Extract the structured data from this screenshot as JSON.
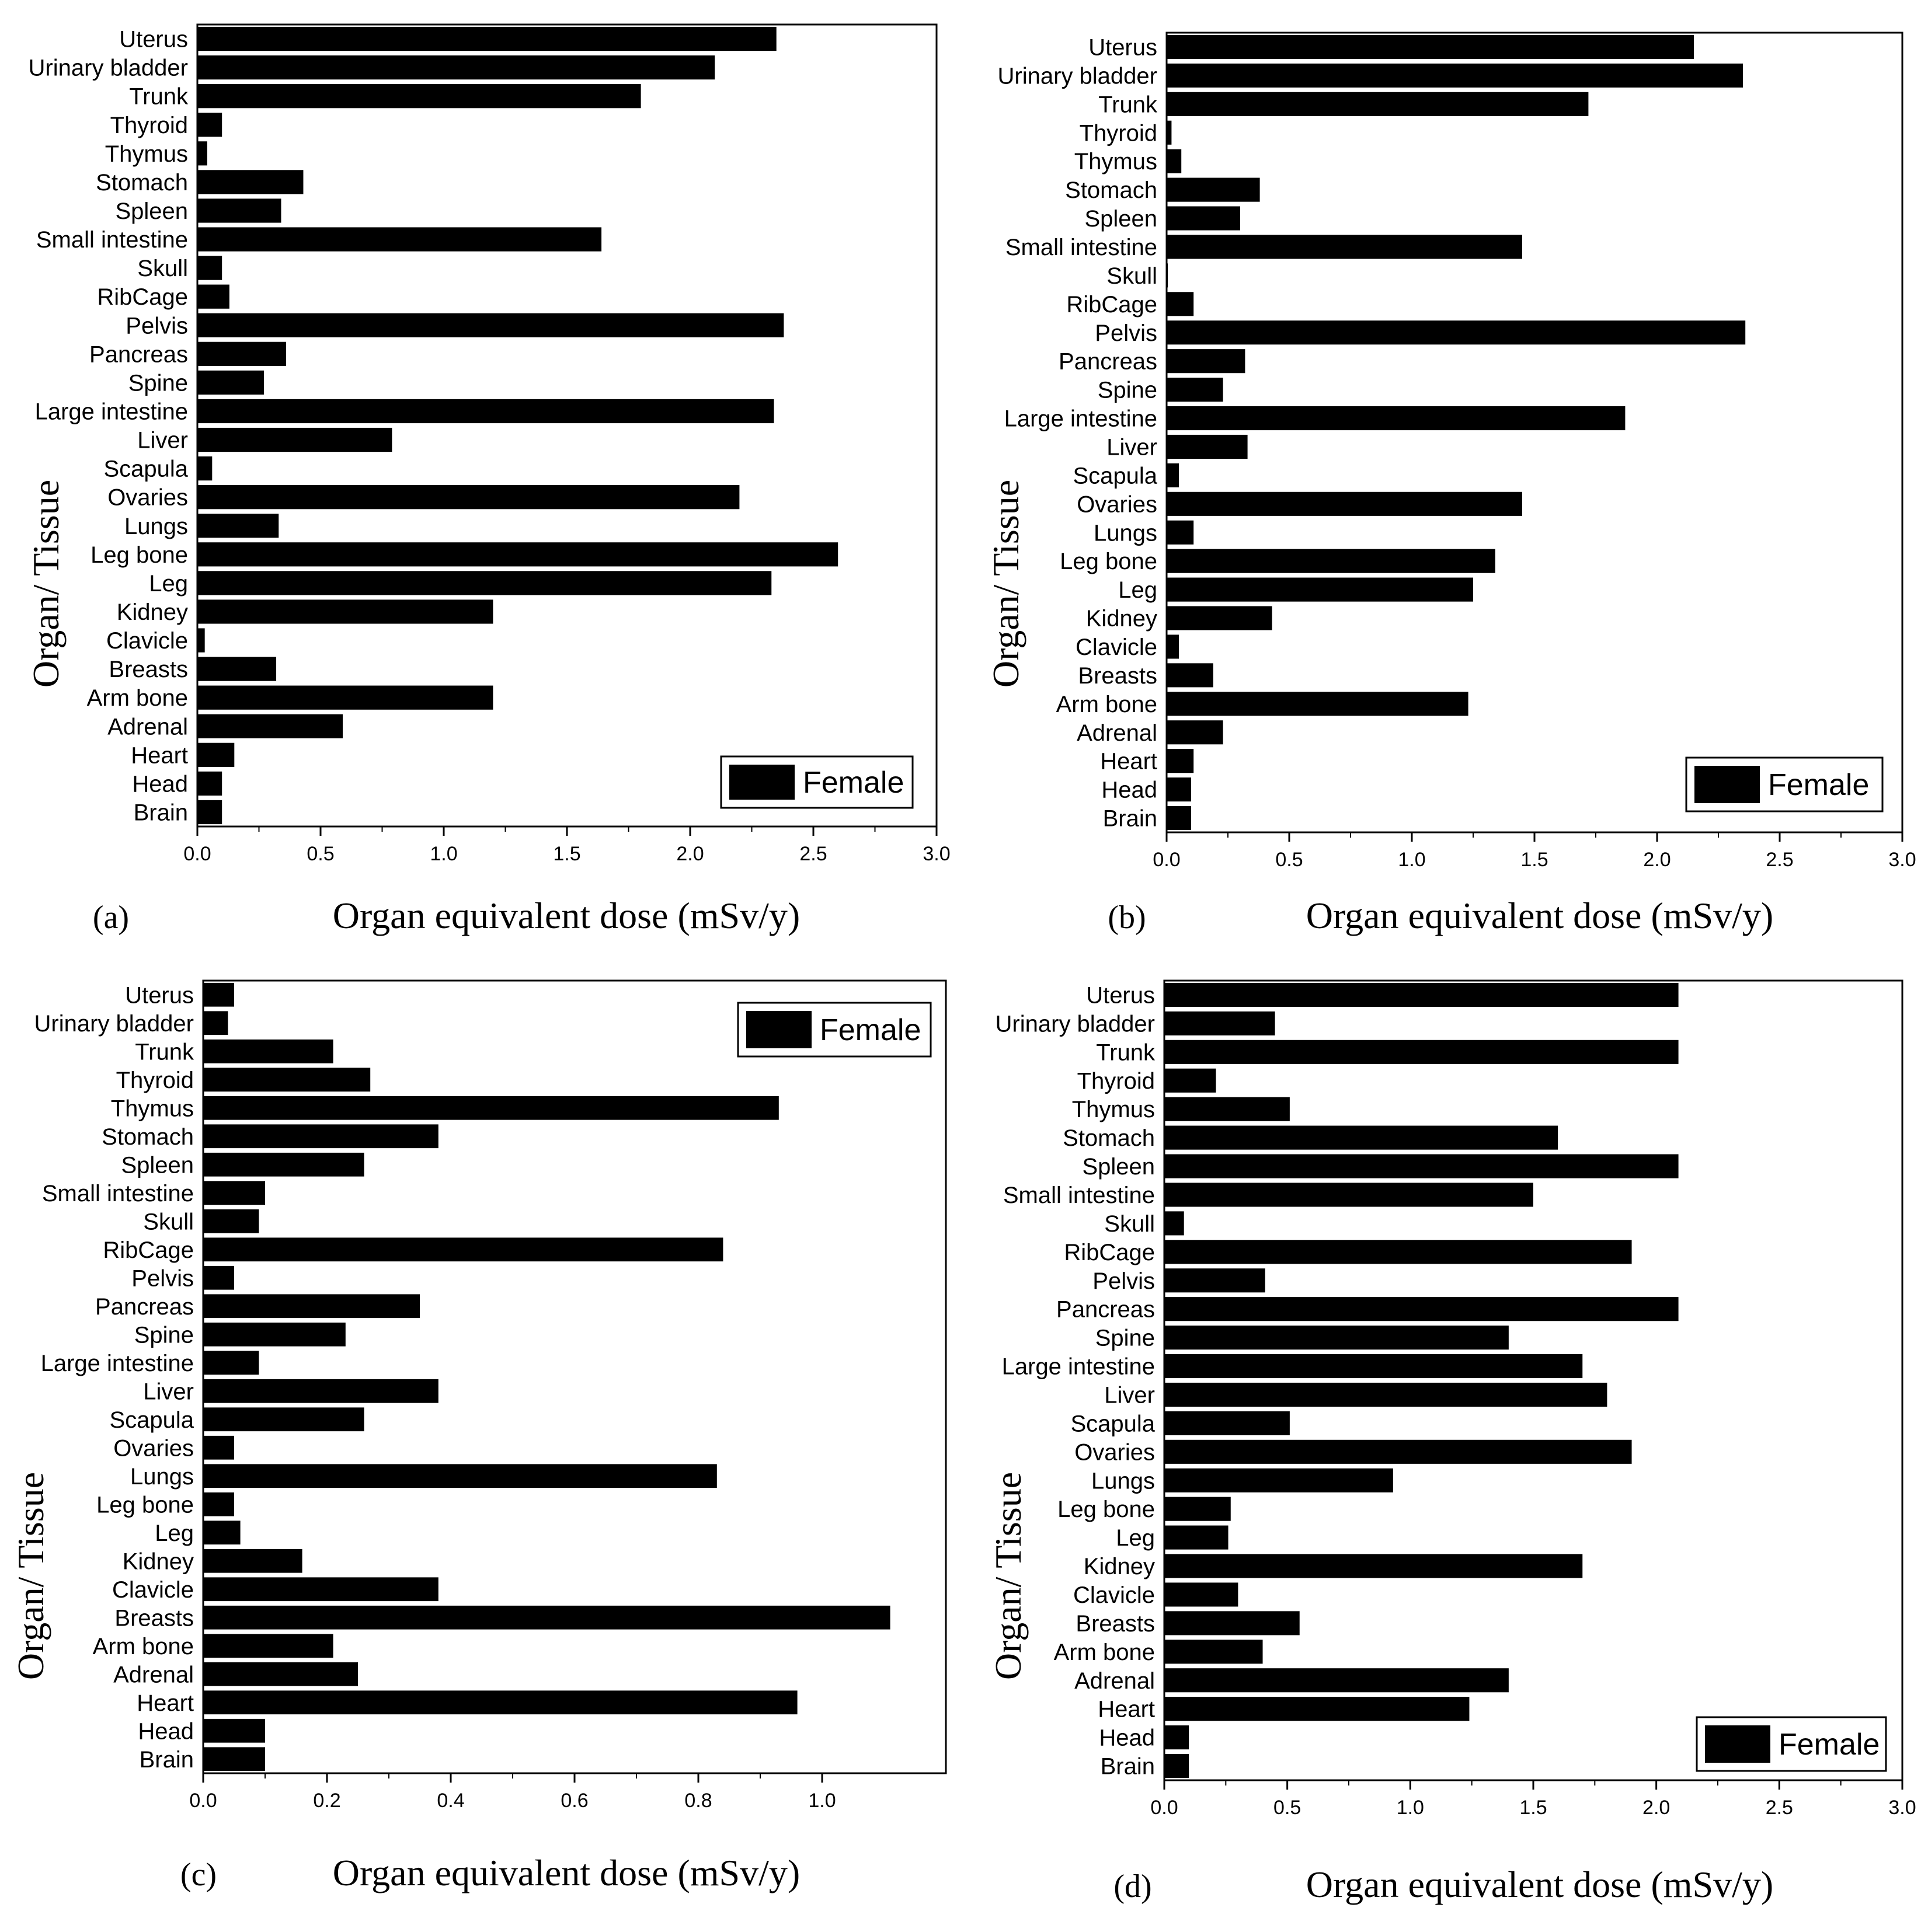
{
  "chart_data": [
    {
      "panel": "(a)",
      "type": "bar",
      "orientation": "horizontal",
      "xlabel": "Organ equivalent dose  (mSv/y)",
      "ylabel": "Organ/ Tissue",
      "xlim": [
        0,
        3.0
      ],
      "xticks": [
        "0.0",
        "0.5",
        "1.0",
        "1.5",
        "2.0",
        "2.5",
        "3.0"
      ],
      "legend": {
        "label": "Female",
        "position": "bottom-right"
      },
      "categories": [
        "Uterus",
        "Urinary bladder",
        "Trunk",
        "Thyroid",
        "Thymus",
        "Stomach",
        "Spleen",
        "Small intestine",
        "Skull",
        "RibCage",
        "Pelvis",
        "Pancreas",
        "Spine",
        "Large intestine",
        "Liver",
        "Scapula",
        "Ovaries",
        "Lungs",
        "Leg bone",
        "Leg",
        "Kidney",
        "Clavicle",
        "Breasts",
        "Arm bone",
        "Adrenal",
        "Heart",
        "Head",
        "Brain"
      ],
      "values": [
        2.35,
        2.1,
        1.8,
        0.1,
        0.04,
        0.43,
        0.34,
        1.64,
        0.1,
        0.13,
        2.38,
        0.36,
        0.27,
        2.34,
        0.79,
        0.06,
        2.2,
        0.33,
        2.6,
        2.33,
        1.2,
        0.03,
        0.32,
        1.2,
        0.59,
        0.15,
        0.1,
        0.1
      ],
      "color": "#000000"
    },
    {
      "panel": "(b)",
      "type": "bar",
      "orientation": "horizontal",
      "xlabel": "Organ equivalent dose  (mSv/y)",
      "ylabel": "Organ/ Tissue",
      "xlim": [
        0,
        3.0
      ],
      "xticks": [
        "0.0",
        "0.5",
        "1.0",
        "1.5",
        "2.0",
        "2.5",
        "3.0"
      ],
      "legend": {
        "label": "Female",
        "position": "bottom-right"
      },
      "categories": [
        "Uterus",
        "Urinary bladder",
        "Trunk",
        "Thyroid",
        "Thymus",
        "Stomach",
        "Spleen",
        "Small intestine",
        "Skull",
        "RibCage",
        "Pelvis",
        "Pancreas",
        "Spine",
        "Large intestine",
        "Liver",
        "Scapula",
        "Ovaries",
        "Lungs",
        "Leg bone",
        "Leg",
        "Kidney",
        "Clavicle",
        "Breasts",
        "Arm bone",
        "Adrenal",
        "Heart",
        "Head",
        "Brain"
      ],
      "values": [
        2.15,
        2.35,
        1.72,
        0.02,
        0.06,
        0.38,
        0.3,
        1.45,
        0.005,
        0.11,
        2.36,
        0.32,
        0.23,
        1.87,
        0.33,
        0.05,
        1.45,
        0.11,
        1.34,
        1.25,
        0.43,
        0.05,
        0.19,
        1.23,
        0.23,
        0.11,
        0.1,
        0.1
      ],
      "color": "#000000"
    },
    {
      "panel": "(c)",
      "type": "bar",
      "orientation": "horizontal",
      "xlabel": "Organ equivalent dose  (mSv/y)",
      "ylabel": "Organ/ Tissue",
      "xlim": [
        0,
        1.2
      ],
      "xticks": [
        "0.0",
        "0.2",
        "0.4",
        "0.6",
        "0.8",
        "1.0"
      ],
      "legend": {
        "label": "Female",
        "position": "top-right"
      },
      "categories": [
        "Uterus",
        "Urinary bladder",
        "Trunk",
        "Thyroid",
        "Thymus",
        "Stomach",
        "Spleen",
        "Small intestine",
        "Skull",
        "RibCage",
        "Pelvis",
        "Pancreas",
        "Spine",
        "Large intestine",
        "Liver",
        "Scapula",
        "Ovaries",
        "Lungs",
        "Leg bone",
        "Leg",
        "Kidney",
        "Clavicle",
        "Breasts",
        "Arm bone",
        "Adrenal",
        "Heart",
        "Head",
        "Brain"
      ],
      "values": [
        0.05,
        0.04,
        0.21,
        0.27,
        0.93,
        0.38,
        0.26,
        0.1,
        0.09,
        0.84,
        0.05,
        0.35,
        0.23,
        0.09,
        0.38,
        0.26,
        0.05,
        0.83,
        0.05,
        0.06,
        0.16,
        0.38,
        1.11,
        0.21,
        0.25,
        0.96,
        0.1,
        0.1
      ],
      "color": "#000000"
    },
    {
      "panel": "(d)",
      "type": "bar",
      "orientation": "horizontal",
      "xlabel": "Organ equivalent dose  (mSv/y)",
      "ylabel": "Organ/ Tissue",
      "xlim": [
        0,
        3.0
      ],
      "xticks": [
        "0.0",
        "0.5",
        "1.0",
        "1.5",
        "2.0",
        "2.5",
        "3.0"
      ],
      "legend": {
        "label": "Female",
        "position": "bottom-right"
      },
      "categories": [
        "Uterus",
        "Urinary bladder",
        "Trunk",
        "Thyroid",
        "Thymus",
        "Stomach",
        "Spleen",
        "Small intestine",
        "Skull",
        "RibCage",
        "Pelvis",
        "Pancreas",
        "Spine",
        "Large intestine",
        "Liver",
        "Scapula",
        "Ovaries",
        "Lungs",
        "Leg bone",
        "Leg",
        "Kidney",
        "Clavicle",
        "Breasts",
        "Arm bone",
        "Adrenal",
        "Heart",
        "Head",
        "Brain"
      ],
      "values": [
        2.09,
        0.45,
        2.09,
        0.21,
        0.51,
        1.6,
        2.09,
        1.5,
        0.08,
        1.9,
        0.41,
        2.09,
        1.4,
        1.7,
        1.8,
        0.51,
        1.9,
        0.93,
        0.27,
        0.26,
        1.7,
        0.3,
        0.55,
        0.4,
        1.4,
        1.24,
        0.1,
        0.1
      ],
      "color": "#000000"
    }
  ]
}
